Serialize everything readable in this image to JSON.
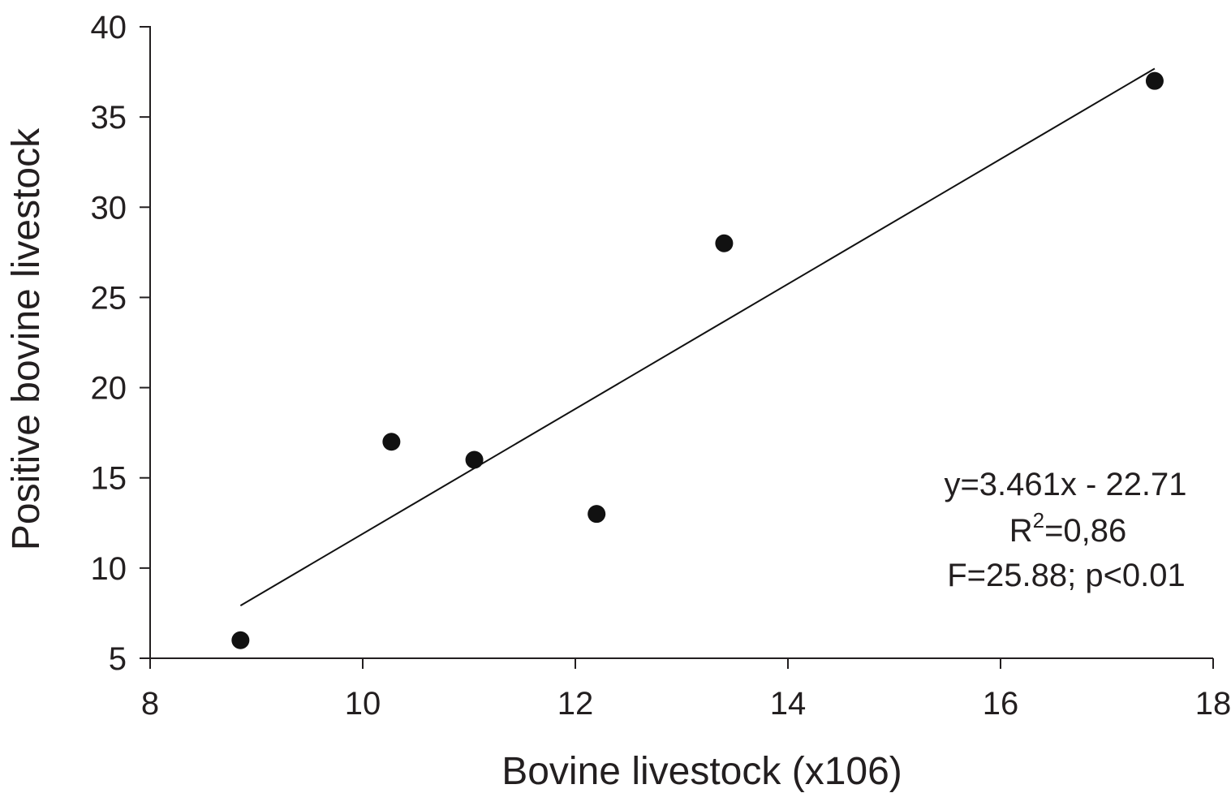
{
  "chart_data": {
    "type": "scatter",
    "title": "",
    "xlabel": "Bovine livestock (x106)",
    "ylabel": "Positive bovine livestock",
    "xlim": [
      8,
      18
    ],
    "ylim": [
      5,
      40
    ],
    "xticks": [
      "8",
      "10",
      "12",
      "14",
      "16",
      "18"
    ],
    "yticks": [
      "5",
      "10",
      "15",
      "20",
      "25",
      "30",
      "35",
      "40"
    ],
    "grid": false,
    "series": [
      {
        "points": [
          {
            "x": 8.85,
            "y": 6
          },
          {
            "x": 10.27,
            "y": 17
          },
          {
            "x": 11.05,
            "y": 16
          },
          {
            "x": 12.2,
            "y": 13
          },
          {
            "x": 13.4,
            "y": 28
          },
          {
            "x": 17.45,
            "y": 37
          }
        ]
      }
    ],
    "trendline": {
      "slope": 3.461,
      "intercept": -22.71,
      "x_range": [
        8.85,
        17.45
      ]
    },
    "annotations": {
      "equation": "y=3.461x - 22.71",
      "r2_prefix": "R",
      "r2_superscript": "2",
      "r2_value": "=0,86",
      "stats": "F=25.88; p<0.01"
    },
    "colors": {
      "marker": "#111111",
      "line": "#111111",
      "axis": "#231f20"
    }
  }
}
